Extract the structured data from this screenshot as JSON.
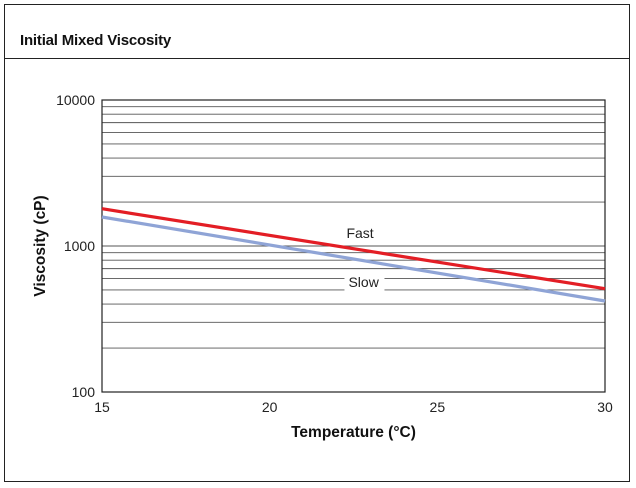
{
  "header": {
    "title": "Initial Mixed Viscosity"
  },
  "chart_data": {
    "type": "line",
    "title": "",
    "xlabel": "Temperature (°C)",
    "ylabel": "Viscosity (cP)",
    "xlim": [
      15,
      30
    ],
    "ylim": [
      100,
      10000
    ],
    "yscale": "log",
    "x_ticks": [
      "15",
      "20",
      "25",
      "30"
    ],
    "y_ticks": [
      "100",
      "1000",
      "10000"
    ],
    "grid": true,
    "series": [
      {
        "name": "Fast",
        "color": "#e31e25",
        "x": [
          15,
          30
        ],
        "y": [
          1800,
          510
        ]
      },
      {
        "name": "Slow",
        "color": "#8fa4d6",
        "x": [
          15,
          30
        ],
        "y": [
          1580,
          420
        ]
      }
    ]
  }
}
